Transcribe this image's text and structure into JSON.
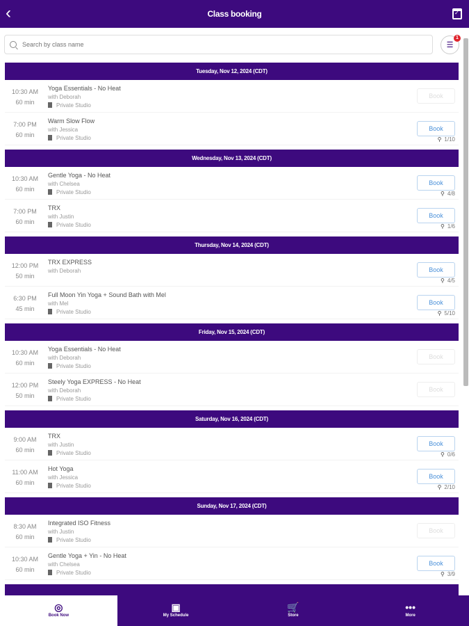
{
  "header": {
    "title": "Class booking",
    "back_icon": "chevron-left-icon",
    "calendar_icon": "calendar-check-icon"
  },
  "search": {
    "placeholder": "Search by class name",
    "filter_badge": "1"
  },
  "colors": {
    "brand": "#3d0a7e",
    "book": "#4a90d9",
    "badge": "#e0242c"
  },
  "days": [
    {
      "date": "Tuesday, Nov 12, 2024 (CDT)",
      "classes": [
        {
          "time": "10:30 AM",
          "duration": "60 min",
          "name": "Yoga Essentials - No Heat",
          "instructor": "with Deborah",
          "location": "Private Studio",
          "book": "Book",
          "enabled": false,
          "capacity": ""
        },
        {
          "time": "7:00 PM",
          "duration": "60 min",
          "name": "Warm Slow Flow",
          "instructor": "with Jessica",
          "location": "Private Studio",
          "book": "Book",
          "enabled": true,
          "capacity": "1/10"
        }
      ]
    },
    {
      "date": "Wednesday, Nov 13, 2024 (CDT)",
      "classes": [
        {
          "time": "10:30 AM",
          "duration": "60 min",
          "name": "Gentle Yoga - No Heat",
          "instructor": "with Chelsea",
          "location": "Private Studio",
          "book": "Book",
          "enabled": true,
          "capacity": "4/8"
        },
        {
          "time": "7:00 PM",
          "duration": "60 min",
          "name": "TRX",
          "instructor": "with Justin",
          "location": "Private Studio",
          "book": "Book",
          "enabled": true,
          "capacity": "1/6"
        }
      ]
    },
    {
      "date": "Thursday, Nov 14, 2024 (CDT)",
      "classes": [
        {
          "time": "12:00 PM",
          "duration": "50 min",
          "name": "TRX EXPRESS",
          "instructor": "with Deborah",
          "location": "",
          "book": "Book",
          "enabled": true,
          "capacity": "4/5"
        },
        {
          "time": "6:30 PM",
          "duration": "45 min",
          "name": "Full Moon Yin Yoga + Sound Bath with Mel",
          "instructor": "with Mel",
          "location": "Private Studio",
          "book": "Book",
          "enabled": true,
          "capacity": "5/10"
        }
      ]
    },
    {
      "date": "Friday, Nov 15, 2024 (CDT)",
      "classes": [
        {
          "time": "10:30 AM",
          "duration": "60 min",
          "name": "Yoga Essentials - No Heat",
          "instructor": "with Deborah",
          "location": "Private Studio",
          "book": "Book",
          "enabled": false,
          "capacity": ""
        },
        {
          "time": "12:00 PM",
          "duration": "50 min",
          "name": "Steely Yoga EXPRESS - No Heat",
          "instructor": "with Deborah",
          "location": "Private Studio",
          "book": "Book",
          "enabled": false,
          "capacity": ""
        }
      ]
    },
    {
      "date": "Saturday, Nov 16, 2024 (CDT)",
      "classes": [
        {
          "time": "9:00 AM",
          "duration": "60 min",
          "name": "TRX",
          "instructor": "with Justin",
          "location": "Private Studio",
          "book": "Book",
          "enabled": true,
          "capacity": "0/6"
        },
        {
          "time": "11:00 AM",
          "duration": "60 min",
          "name": "Hot Yoga",
          "instructor": "with Jessica",
          "location": "Private Studio",
          "book": "Book",
          "enabled": true,
          "capacity": "2/10"
        }
      ]
    },
    {
      "date": "Sunday, Nov 17, 2024 (CDT)",
      "classes": [
        {
          "time": "8:30 AM",
          "duration": "60 min",
          "name": "Integrated ISO Fitness",
          "instructor": "with Justin",
          "location": "Private Studio",
          "book": "Book",
          "enabled": false,
          "capacity": ""
        },
        {
          "time": "10:30 AM",
          "duration": "60 min",
          "name": "Gentle Yoga + Yin - No Heat",
          "instructor": "with Chelsea",
          "location": "Private Studio",
          "book": "Book",
          "enabled": true,
          "capacity": "3/9"
        }
      ]
    }
  ],
  "nav": [
    {
      "label": "Book Now",
      "icon": "check-circle-icon",
      "active": true
    },
    {
      "label": "My Schedule",
      "icon": "calendar-icon",
      "active": false
    },
    {
      "label": "Store",
      "icon": "cart-icon",
      "active": false
    },
    {
      "label": "More",
      "icon": "more-dots-icon",
      "active": false
    }
  ]
}
